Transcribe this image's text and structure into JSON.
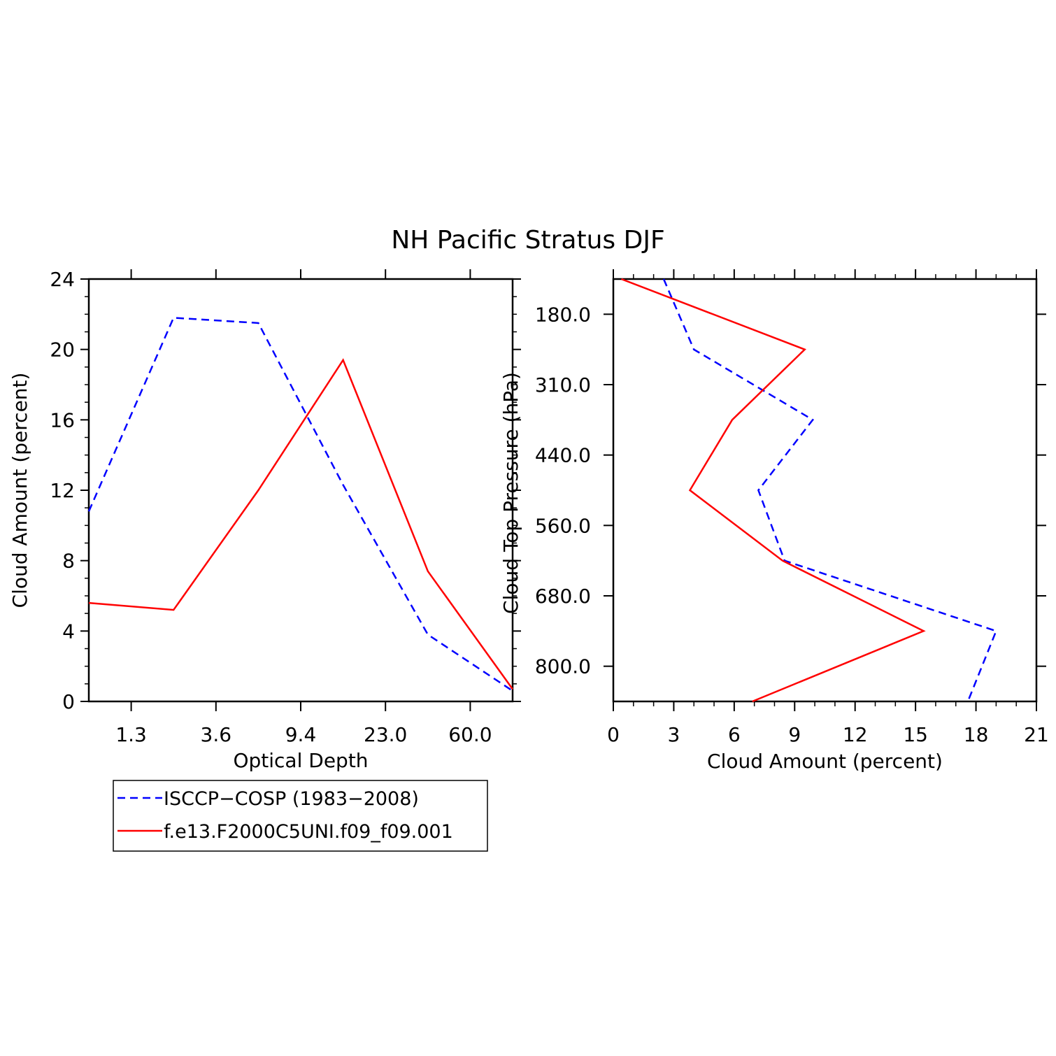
{
  "title": "NH Pacific Stratus DJF",
  "chart_data": [
    {
      "type": "line",
      "xlabel": "Optical Depth",
      "ylabel": "Cloud Amount (percent)",
      "x_tick_labels": [
        "1.3",
        "3.6",
        "9.4",
        "23.0",
        "60.0"
      ],
      "y_ticks": [
        0,
        4,
        8,
        12,
        16,
        20,
        24
      ],
      "ylim": [
        0,
        24
      ],
      "bin_count": 6,
      "series": [
        {
          "name": "ISCCP-COSP (1983-2008)",
          "color": "#0000ff",
          "dash": "dashed",
          "values": [
            10.8,
            21.8,
            21.5,
            12.3,
            3.8,
            0.6
          ]
        },
        {
          "name": "f.e13.F2000C5UNI.f09_f09.001",
          "color": "#ff0000",
          "dash": "solid",
          "values": [
            5.6,
            5.2,
            12.0,
            19.4,
            7.4,
            0.7
          ]
        }
      ]
    },
    {
      "type": "line",
      "orientation": "horizontal",
      "xlabel": "Cloud Amount (percent)",
      "ylabel": "Cloud Top Pressure (hPa)",
      "x_ticks": [
        0,
        3,
        6,
        9,
        12,
        15,
        18,
        21
      ],
      "xlim": [
        0,
        21
      ],
      "y_tick_labels": [
        "180.0",
        "310.0",
        "440.0",
        "560.0",
        "680.0",
        "800.0"
      ],
      "bin_count": 7,
      "series": [
        {
          "name": "ISCCP-COSP (1983-2008)",
          "color": "#0000ff",
          "dash": "dashed",
          "values": [
            2.5,
            4.0,
            9.9,
            7.2,
            8.5,
            19.0,
            17.6
          ]
        },
        {
          "name": "f.e13.F2000C5UNI.f09_f09.001",
          "color": "#ff0000",
          "dash": "solid",
          "values": [
            0.4,
            9.5,
            5.9,
            3.8,
            8.4,
            15.4,
            6.9
          ]
        }
      ]
    }
  ],
  "legend": {
    "items": [
      {
        "label": "ISCCP−COSP (1983−2008)",
        "color": "#0000ff",
        "dash": "dashed"
      },
      {
        "label": "f.e13.F2000C5UNI.f09_f09.001",
        "color": "#ff0000",
        "dash": "solid"
      }
    ]
  }
}
